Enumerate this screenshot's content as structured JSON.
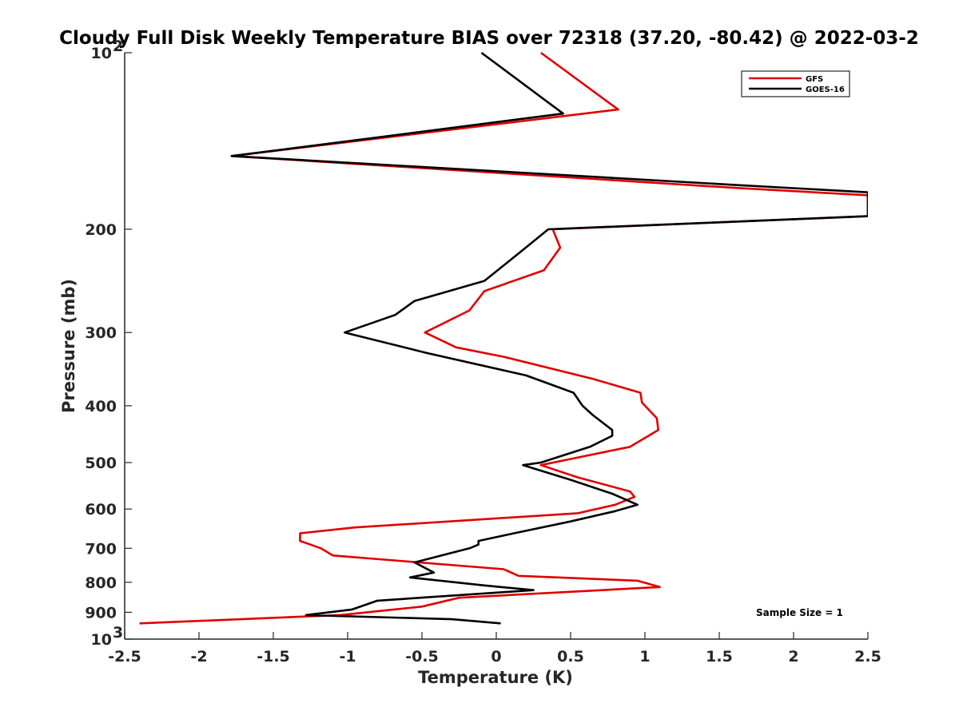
{
  "chart_data": {
    "type": "line",
    "title": "Cloudy Full Disk Weekly Temperature BIAS over 72318 (37.20, -80.42) @ 2022-03-2",
    "xlabel": "Temperature (K)",
    "ylabel": "Pressure (mb)",
    "xlim": [
      -2.5,
      2.5
    ],
    "ylim": [
      100,
      1000
    ],
    "yscale": "log",
    "y_reversed": true,
    "grid": false,
    "legend_position": "top-right",
    "x_ticks": [
      -2.5,
      -2,
      -1.5,
      -1,
      -0.5,
      0,
      0.5,
      1,
      1.5,
      2,
      2.5
    ],
    "x_tick_labels": [
      "-2.5",
      "-2",
      "-1.5",
      "-1",
      "-0.5",
      "0",
      "0.5",
      "1",
      "1.5",
      "2",
      "2.5"
    ],
    "y_ticks": [
      100,
      200,
      300,
      400,
      500,
      600,
      700,
      800,
      900,
      1000
    ],
    "y_tick_labels": [
      {
        "base": "10",
        "exp": "2"
      },
      {
        "base": "200",
        "exp": ""
      },
      {
        "base": "300",
        "exp": ""
      },
      {
        "base": "400",
        "exp": ""
      },
      {
        "base": "500",
        "exp": ""
      },
      {
        "base": "600",
        "exp": ""
      },
      {
        "base": "700",
        "exp": ""
      },
      {
        "base": "800",
        "exp": ""
      },
      {
        "base": "900",
        "exp": ""
      },
      {
        "base": "10",
        "exp": "3"
      }
    ],
    "series": [
      {
        "name": "GFS",
        "color": "#e00000",
        "points": [
          [
            0.3,
            100
          ],
          [
            0.82,
            125
          ],
          [
            -1.78,
            150
          ],
          [
            1.6,
            170
          ],
          [
            2.5,
            175
          ],
          [
            2.5,
            190
          ],
          [
            0.38,
            200
          ],
          [
            0.43,
            215
          ],
          [
            0.32,
            235
          ],
          [
            -0.08,
            255
          ],
          [
            -0.18,
            275
          ],
          [
            -0.48,
            300
          ],
          [
            -0.27,
            318
          ],
          [
            0.05,
            330
          ],
          [
            0.65,
            360
          ],
          [
            0.97,
            380
          ],
          [
            0.98,
            395
          ],
          [
            1.08,
            420
          ],
          [
            1.09,
            440
          ],
          [
            0.9,
            470
          ],
          [
            0.55,
            490
          ],
          [
            0.3,
            505
          ],
          [
            0.55,
            530
          ],
          [
            0.9,
            560
          ],
          [
            0.93,
            572
          ],
          [
            0.8,
            590
          ],
          [
            0.55,
            610
          ],
          [
            -0.95,
            645
          ],
          [
            -1.32,
            660
          ],
          [
            -1.32,
            680
          ],
          [
            -1.18,
            700
          ],
          [
            -1.1,
            720
          ],
          [
            0.05,
            760
          ],
          [
            0.15,
            780
          ],
          [
            0.95,
            795
          ],
          [
            1.1,
            815
          ],
          [
            -0.25,
            850
          ],
          [
            -0.5,
            880
          ],
          [
            -1.05,
            910
          ],
          [
            -2.4,
            940
          ]
        ]
      },
      {
        "name": "GOES-16",
        "color": "#000000",
        "points": [
          [
            -0.1,
            100
          ],
          [
            0.45,
            127
          ],
          [
            -1.78,
            150
          ],
          [
            1.6,
            168
          ],
          [
            2.5,
            173
          ],
          [
            2.5,
            190
          ],
          [
            0.35,
            200
          ],
          [
            0.15,
            220
          ],
          [
            -0.08,
            245
          ],
          [
            -0.55,
            265
          ],
          [
            -0.68,
            280
          ],
          [
            -1.02,
            300
          ],
          [
            -0.47,
            325
          ],
          [
            0.2,
            355
          ],
          [
            0.52,
            380
          ],
          [
            0.58,
            400
          ],
          [
            0.65,
            415
          ],
          [
            0.78,
            440
          ],
          [
            0.78,
            450
          ],
          [
            0.63,
            470
          ],
          [
            0.3,
            500
          ],
          [
            0.18,
            505
          ],
          [
            0.5,
            535
          ],
          [
            0.78,
            565
          ],
          [
            0.95,
            590
          ],
          [
            0.8,
            605
          ],
          [
            0.5,
            630
          ],
          [
            0.12,
            660
          ],
          [
            -0.12,
            680
          ],
          [
            -0.12,
            690
          ],
          [
            -0.18,
            700
          ],
          [
            -0.55,
            740
          ],
          [
            -0.42,
            770
          ],
          [
            -0.58,
            785
          ],
          [
            -0.08,
            810
          ],
          [
            0.25,
            825
          ],
          [
            -0.8,
            860
          ],
          [
            -0.97,
            890
          ],
          [
            -1.28,
            910
          ],
          [
            -0.3,
            925
          ],
          [
            0.03,
            940
          ]
        ]
      }
    ],
    "annotation": "Sample Size = 1"
  }
}
